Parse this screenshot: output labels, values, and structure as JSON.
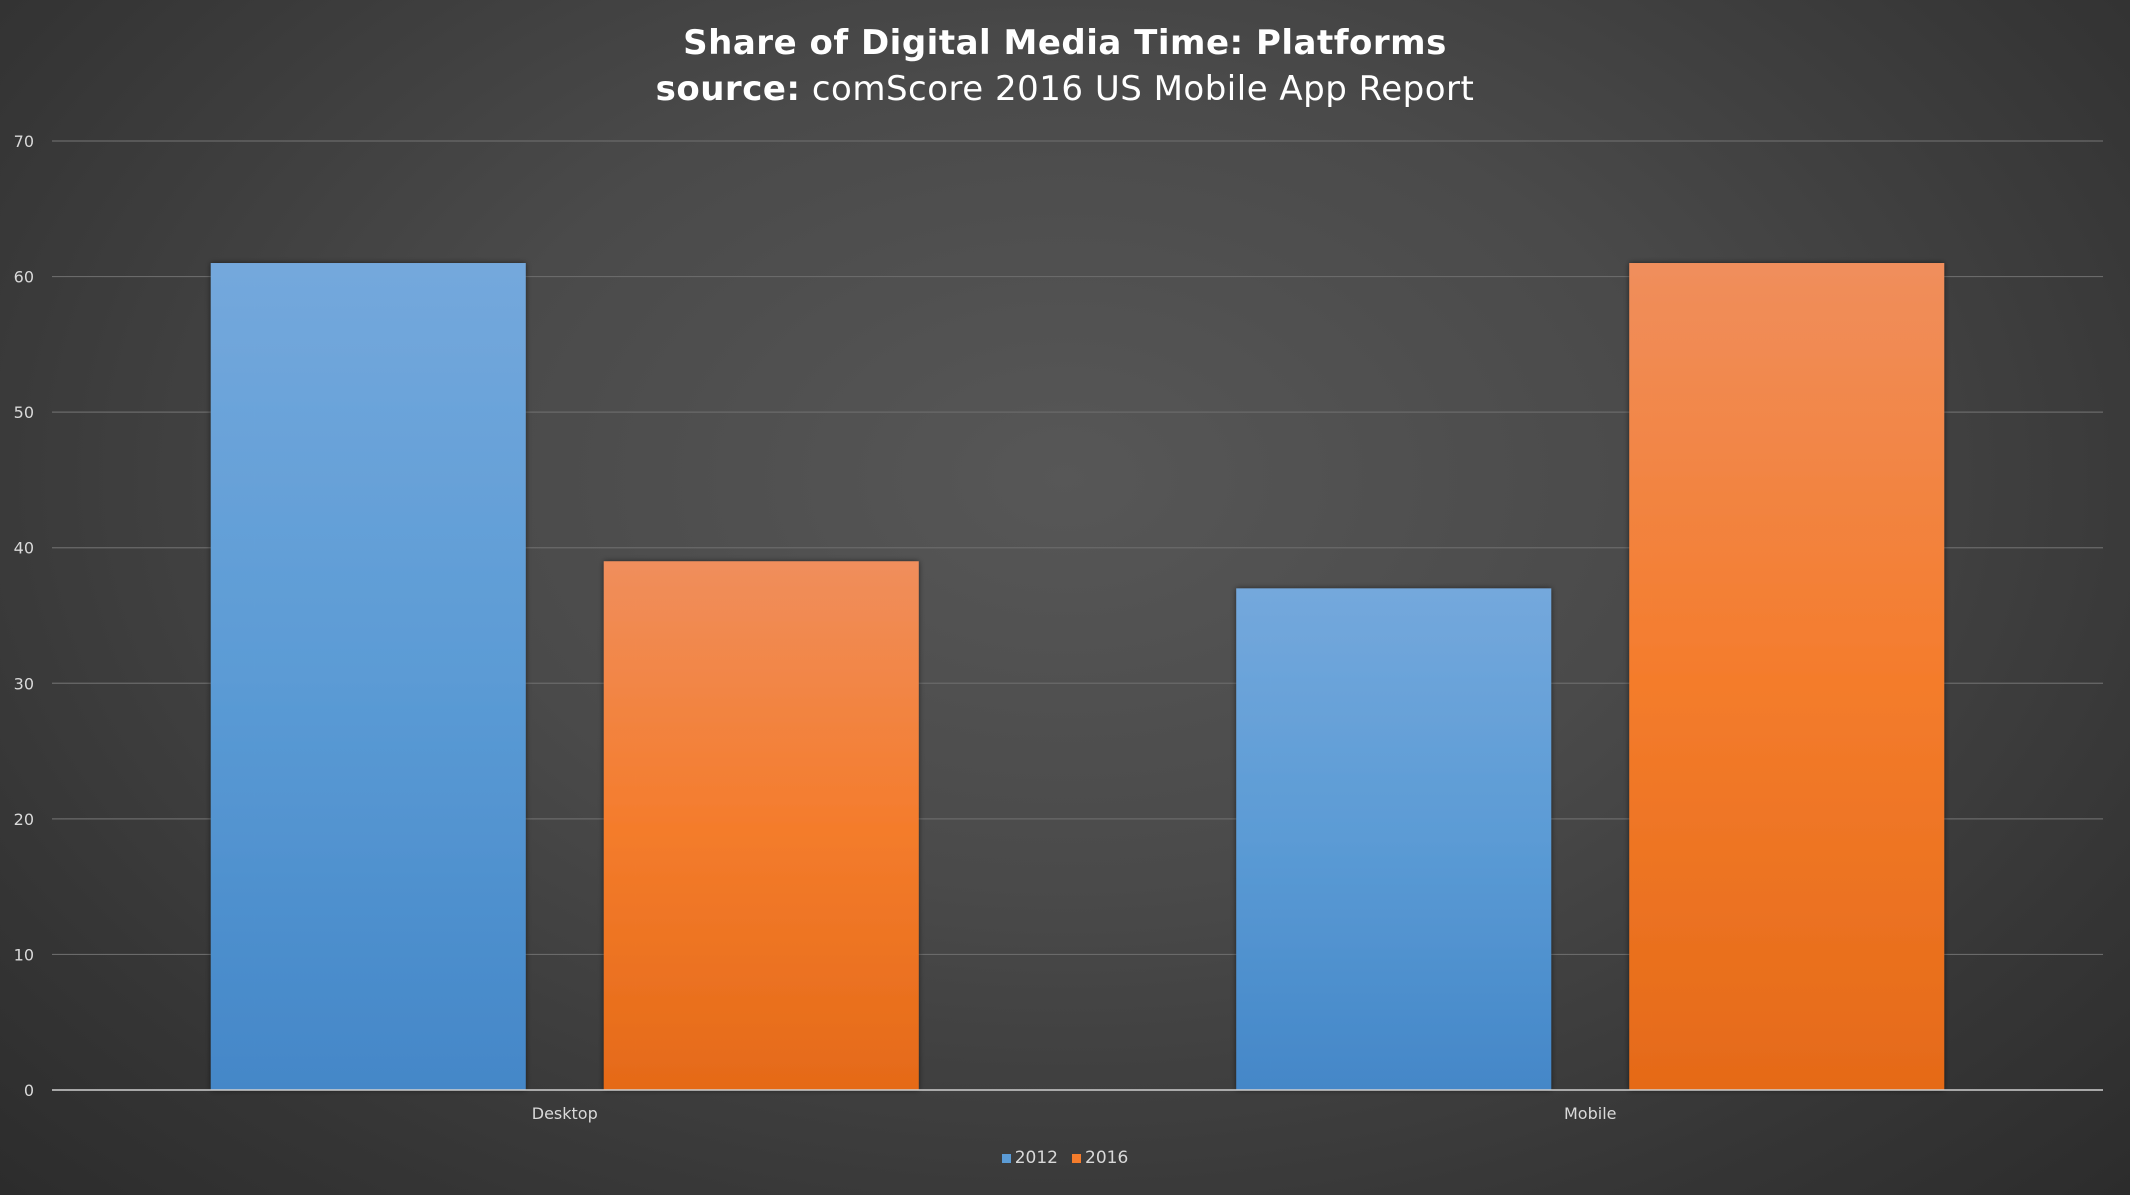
{
  "chart_data": {
    "type": "bar",
    "title": "Share of Digital Media Time: Platforms",
    "subtitle_lead": "source:",
    "subtitle_rest": "comScore 2016 US Mobile App Report",
    "categories": [
      "Desktop",
      "Mobile"
    ],
    "series": [
      {
        "name": "2012",
        "values": [
          61,
          37
        ],
        "color": "#5b9bd5",
        "color_light": "#74a8dc",
        "color_dark": "#4487c8"
      },
      {
        "name": "2016",
        "values": [
          39,
          61
        ],
        "color": "#f47c2c",
        "color_light": "#f08e5c",
        "color_dark": "#e56a18"
      }
    ],
    "ylim": [
      0,
      70
    ],
    "yticks": [
      0,
      10,
      20,
      30,
      40,
      50,
      60,
      70
    ],
    "xlabel": "",
    "ylabel": "",
    "grid": true,
    "legend_position": "bottom"
  }
}
